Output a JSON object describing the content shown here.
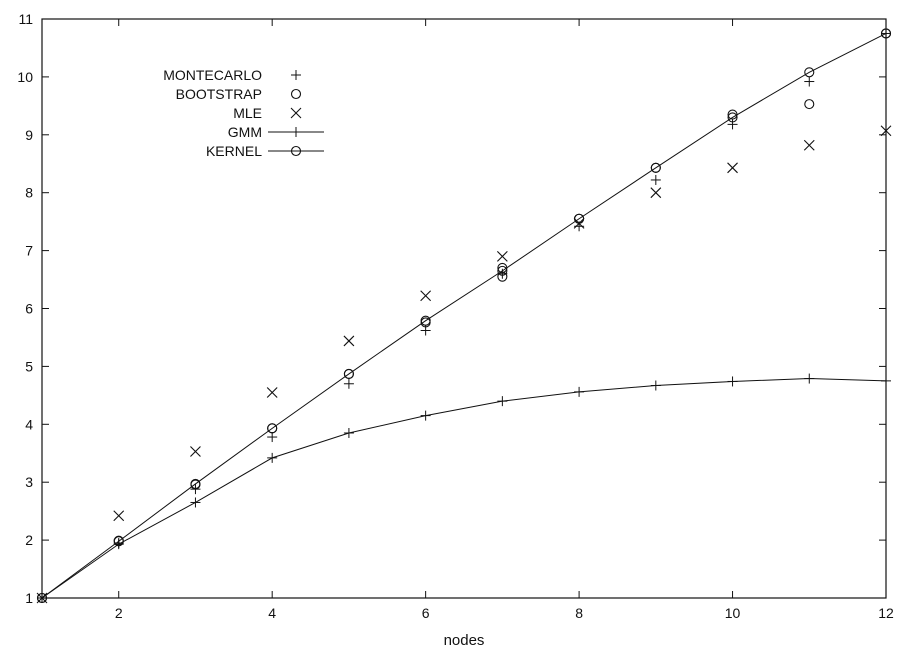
{
  "chart_data": {
    "type": "scatter",
    "xlabel": "nodes",
    "ylabel": "",
    "xlim": [
      1,
      12
    ],
    "ylim": [
      1,
      11
    ],
    "xticks": [
      2,
      4,
      6,
      8,
      10,
      12
    ],
    "yticks": [
      1,
      2,
      3,
      4,
      5,
      6,
      7,
      8,
      9,
      10,
      11
    ],
    "grid": false,
    "legend_position": "top-left",
    "series": [
      {
        "name": "MONTECARLO",
        "marker": "plus",
        "line": false,
        "x": [
          1,
          2,
          3,
          4,
          5,
          6,
          7,
          8,
          9,
          10,
          11,
          12
        ],
        "y": [
          1.0,
          1.95,
          2.88,
          3.78,
          4.7,
          5.62,
          6.6,
          7.42,
          8.22,
          9.18,
          9.92,
          10.75
        ]
      },
      {
        "name": "BOOTSTRAP",
        "marker": "circle",
        "line": false,
        "x": [
          1,
          2,
          3,
          4,
          5,
          6,
          7,
          7,
          8,
          9,
          10,
          11,
          12
        ],
        "y": [
          1.0,
          1.99,
          2.96,
          3.93,
          4.87,
          5.76,
          6.55,
          6.7,
          7.55,
          8.43,
          9.35,
          9.53,
          10.75
        ]
      },
      {
        "name": "MLE",
        "marker": "cross",
        "line": false,
        "x": [
          1,
          2,
          3,
          4,
          5,
          6,
          7,
          8,
          9,
          10,
          11,
          12
        ],
        "y": [
          1.0,
          2.42,
          3.53,
          4.55,
          5.44,
          6.22,
          6.9,
          7.47,
          8.0,
          8.43,
          8.82,
          9.07
        ]
      },
      {
        "name": "GMM",
        "marker": "plus",
        "line": true,
        "x": [
          1,
          2,
          3,
          4,
          5,
          6,
          7,
          8,
          9,
          10,
          11,
          12
        ],
        "y": [
          1.0,
          1.93,
          2.65,
          3.42,
          3.85,
          4.15,
          4.4,
          4.56,
          4.67,
          4.74,
          4.79,
          4.75
        ]
      },
      {
        "name": "KERNEL",
        "marker": "circle",
        "line": true,
        "x": [
          1,
          2,
          3,
          4,
          5,
          6,
          7,
          8,
          9,
          10,
          11,
          12
        ],
        "y": [
          1.0,
          1.98,
          2.97,
          3.93,
          4.87,
          5.79,
          6.65,
          7.55,
          8.43,
          9.3,
          10.08,
          10.75
        ]
      }
    ]
  },
  "colors": {
    "ink": "#111111",
    "background": "#ffffff"
  }
}
